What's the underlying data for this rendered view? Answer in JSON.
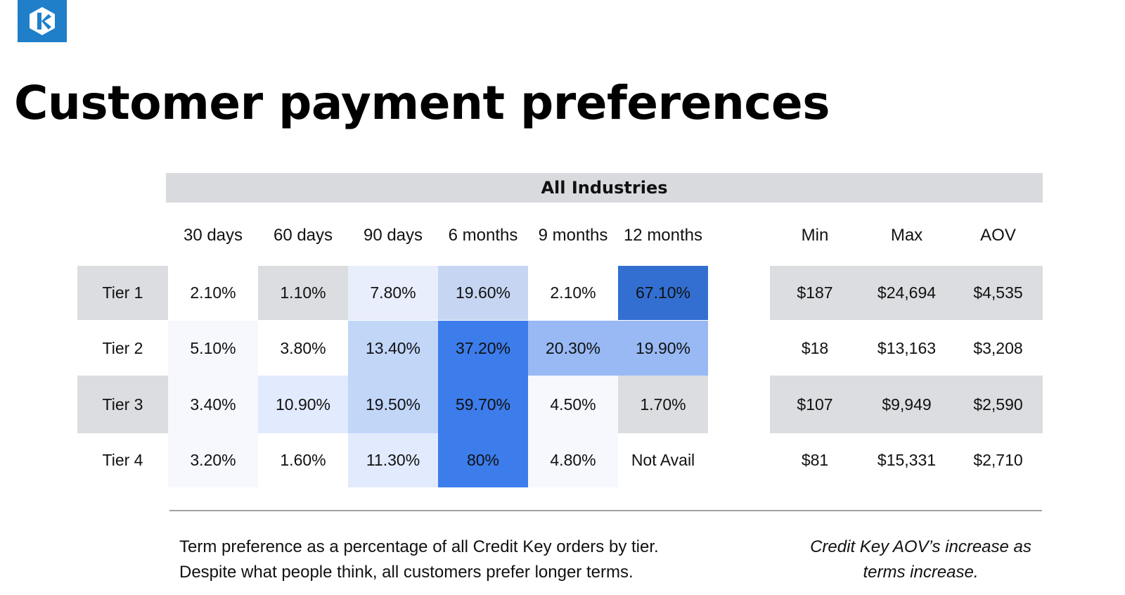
{
  "title": "Customer payment preferences",
  "logo": {
    "icon": "credit-key-logo-icon",
    "color": "#1f7fc9"
  },
  "chart_data": {
    "type": "heatmap",
    "group_label": "All Industries",
    "columns": [
      "30 days",
      "60 days",
      "90 days",
      "6 months",
      "9 months",
      "12 months"
    ],
    "stat_columns": [
      "Min",
      "Max",
      "AOV"
    ],
    "rows": [
      {
        "label": "Tier 1",
        "values": [
          "2.10%",
          "1.10%",
          "7.80%",
          "19.60%",
          "2.10%",
          "67.10%"
        ],
        "stats": [
          "$187",
          "$24,694",
          "$4,535"
        ]
      },
      {
        "label": "Tier 2",
        "values": [
          "5.10%",
          "3.80%",
          "13.40%",
          "37.20%",
          "20.30%",
          "19.90%"
        ],
        "stats": [
          "$18",
          "$13,163",
          "$3,208"
        ]
      },
      {
        "label": "Tier 3",
        "values": [
          "3.40%",
          "10.90%",
          "19.50%",
          "59.70%",
          "4.50%",
          "1.70%"
        ],
        "stats": [
          "$107",
          "$9,949",
          "$2,590"
        ]
      },
      {
        "label": "Tier 4",
        "values": [
          "3.20%",
          "1.60%",
          "11.30%",
          "80%",
          "4.80%",
          "Not Avail"
        ],
        "stats": [
          "$81",
          "$15,331",
          "$2,710"
        ]
      }
    ],
    "colors": {
      "tier_1": [
        "#ffffff",
        "#dcdde0",
        "#e8eefb",
        "#c6d6f2",
        "#ffffff",
        "#336fd1"
      ],
      "tier_2": [
        "#f6f8fe",
        "#ffffff",
        "#c2d6f8",
        "#3d7ceb",
        "#98b9f4",
        "#98b9f4"
      ],
      "tier_3": [
        "#f6f8fe",
        "#e2ebfd",
        "#c2d6f8",
        "#3d7ceb",
        "#f6f8fe",
        "#dcdde0"
      ],
      "tier_4": [
        "#f6f8fe",
        "#ffffff",
        "#e2ebfd",
        "#3d7ceb",
        "#f6f8fe",
        "#ffffff"
      ],
      "row_band": "#dcdde0",
      "header_band": "#d8dadd"
    }
  },
  "notes": {
    "left_line1": "Term preference as a percentage of all Credit Key orders by tier.",
    "left_line2": "Despite what people think, all customers prefer longer terms.",
    "right_line1": "Credit Key AOV’s increase as",
    "right_line2": "terms increase."
  }
}
